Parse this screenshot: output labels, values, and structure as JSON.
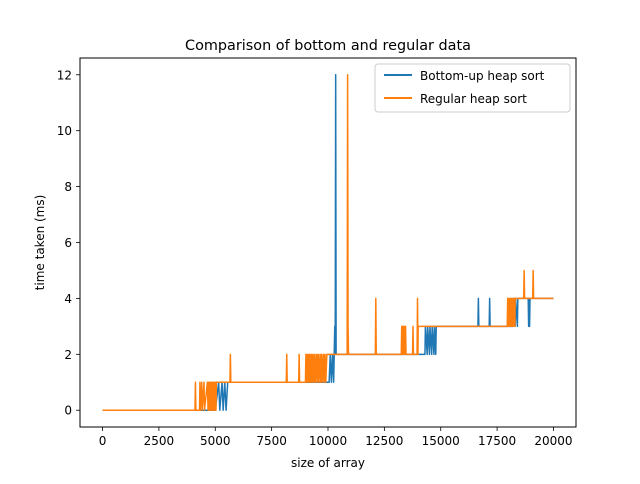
{
  "chart_data": {
    "type": "line",
    "title": "Comparison of bottom and regular data",
    "xlabel": "size of array",
    "ylabel": "time taken (ms)",
    "xlim": [
      -1000,
      21000
    ],
    "ylim": [
      -0.6,
      12.6
    ],
    "xticks": [
      0,
      2500,
      5000,
      7500,
      10000,
      12500,
      15000,
      17500,
      20000
    ],
    "yticks": [
      0,
      2,
      4,
      6,
      8,
      10,
      12
    ],
    "grid": false,
    "legend_position": "top-right",
    "series": [
      {
        "name": "Bottom-up heap sort",
        "color": "#1f77b4",
        "points": [
          [
            0,
            0
          ],
          [
            5000,
            0
          ],
          [
            5150,
            1
          ],
          [
            5200,
            0
          ],
          [
            5300,
            1
          ],
          [
            5350,
            0
          ],
          [
            5420,
            1
          ],
          [
            5480,
            0
          ],
          [
            5550,
            1
          ],
          [
            10050,
            1
          ],
          [
            10100,
            2
          ],
          [
            10150,
            1
          ],
          [
            10200,
            2
          ],
          [
            10250,
            1
          ],
          [
            10300,
            3
          ],
          [
            10320,
            2
          ],
          [
            10340,
            12
          ],
          [
            10360,
            2
          ],
          [
            14300,
            2
          ],
          [
            14320,
            3
          ],
          [
            14400,
            2
          ],
          [
            14420,
            3
          ],
          [
            14500,
            2
          ],
          [
            14520,
            3
          ],
          [
            14600,
            2
          ],
          [
            14620,
            3
          ],
          [
            14700,
            2
          ],
          [
            14720,
            3
          ],
          [
            14780,
            2
          ],
          [
            14800,
            3
          ],
          [
            16650,
            3
          ],
          [
            16670,
            4
          ],
          [
            16690,
            3
          ],
          [
            17150,
            3
          ],
          [
            17170,
            4
          ],
          [
            17190,
            3
          ],
          [
            18200,
            3
          ],
          [
            18220,
            4
          ],
          [
            18300,
            3
          ],
          [
            18320,
            4
          ],
          [
            18400,
            3
          ],
          [
            18420,
            4
          ],
          [
            18880,
            4
          ],
          [
            18900,
            3
          ],
          [
            18920,
            4
          ],
          [
            18940,
            3
          ],
          [
            18960,
            4
          ],
          [
            20000,
            4
          ]
        ]
      },
      {
        "name": "Regular heap sort",
        "color": "#ff7f0e",
        "points": [
          [
            0,
            0
          ],
          [
            4100,
            0
          ],
          [
            4120,
            1
          ],
          [
            4140,
            0
          ],
          [
            4300,
            0
          ],
          [
            4320,
            1
          ],
          [
            4340,
            0
          ],
          [
            4400,
            1
          ],
          [
            4420,
            0
          ],
          [
            4500,
            1
          ],
          [
            4520,
            0
          ],
          [
            4650,
            1
          ],
          [
            4680,
            0
          ],
          [
            4700,
            1
          ],
          [
            4720,
            0
          ],
          [
            4750,
            1
          ],
          [
            4780,
            0
          ],
          [
            4800,
            1
          ],
          [
            4830,
            0
          ],
          [
            4850,
            1
          ],
          [
            4880,
            0
          ],
          [
            4900,
            1
          ],
          [
            4930,
            0
          ],
          [
            4950,
            1
          ],
          [
            4980,
            0
          ],
          [
            5000,
            1
          ],
          [
            5030,
            0
          ],
          [
            5050,
            1
          ],
          [
            5650,
            1
          ],
          [
            5670,
            2
          ],
          [
            5690,
            1
          ],
          [
            8150,
            1
          ],
          [
            8170,
            2
          ],
          [
            8190,
            1
          ],
          [
            8700,
            1
          ],
          [
            8720,
            2
          ],
          [
            8740,
            1
          ],
          [
            9000,
            1
          ],
          [
            9020,
            2
          ],
          [
            9050,
            1
          ],
          [
            9080,
            2
          ],
          [
            9110,
            1
          ],
          [
            9150,
            2
          ],
          [
            9180,
            1
          ],
          [
            9210,
            2
          ],
          [
            9240,
            1
          ],
          [
            9280,
            2
          ],
          [
            9310,
            1
          ],
          [
            9350,
            2
          ],
          [
            9380,
            1
          ],
          [
            9420,
            2
          ],
          [
            9450,
            1
          ],
          [
            9500,
            2
          ],
          [
            9530,
            1
          ],
          [
            9570,
            2
          ],
          [
            9600,
            1
          ],
          [
            9650,
            2
          ],
          [
            9680,
            1
          ],
          [
            9720,
            2
          ],
          [
            9750,
            1
          ],
          [
            9800,
            2
          ],
          [
            9830,
            1
          ],
          [
            9870,
            2
          ],
          [
            9900,
            1
          ],
          [
            9950,
            2
          ],
          [
            10850,
            2
          ],
          [
            10870,
            12
          ],
          [
            10890,
            3
          ],
          [
            10910,
            2
          ],
          [
            12100,
            2
          ],
          [
            12120,
            4
          ],
          [
            12140,
            2
          ],
          [
            13250,
            2
          ],
          [
            13270,
            3
          ],
          [
            13290,
            2
          ],
          [
            13310,
            3
          ],
          [
            13330,
            2
          ],
          [
            13350,
            3
          ],
          [
            13370,
            2
          ],
          [
            13400,
            3
          ],
          [
            13420,
            2
          ],
          [
            13440,
            3
          ],
          [
            13460,
            2
          ],
          [
            13750,
            2
          ],
          [
            13770,
            3
          ],
          [
            13790,
            2
          ],
          [
            13950,
            2
          ],
          [
            13970,
            4
          ],
          [
            13990,
            2
          ],
          [
            14000,
            3
          ],
          [
            17950,
            3
          ],
          [
            17970,
            4
          ],
          [
            18000,
            3
          ],
          [
            18020,
            4
          ],
          [
            18050,
            3
          ],
          [
            18080,
            4
          ],
          [
            18110,
            3
          ],
          [
            18140,
            4
          ],
          [
            18170,
            3
          ],
          [
            18200,
            4
          ],
          [
            18230,
            3
          ],
          [
            18260,
            4
          ],
          [
            18290,
            3
          ],
          [
            18300,
            4
          ],
          [
            18680,
            4
          ],
          [
            18700,
            5
          ],
          [
            18720,
            4
          ],
          [
            19080,
            4
          ],
          [
            19100,
            5
          ],
          [
            19120,
            4
          ],
          [
            20000,
            4
          ]
        ]
      }
    ]
  }
}
